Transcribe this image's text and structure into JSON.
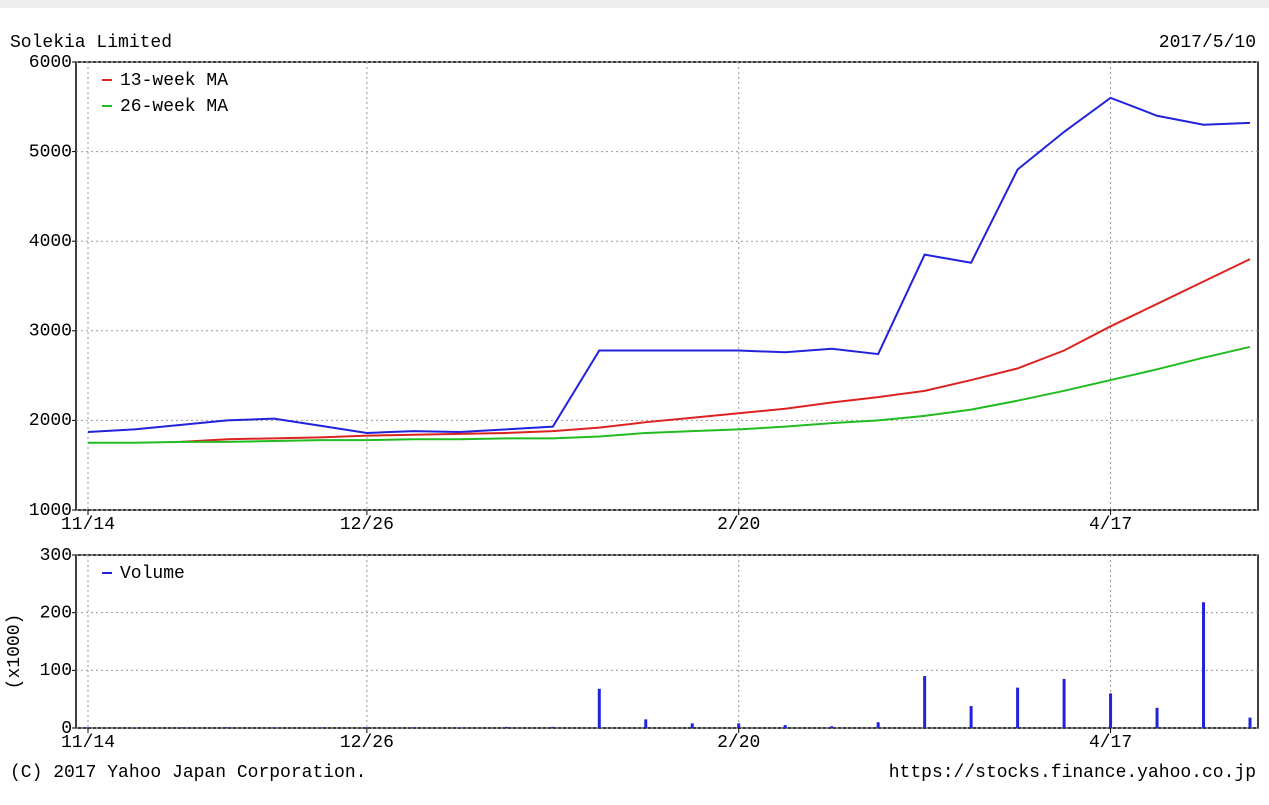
{
  "chart_data": [
    {
      "type": "line",
      "title": "Solekia Limited",
      "date": "2017/5/10",
      "categories": [
        "11/14",
        null,
        null,
        null,
        null,
        null,
        "12/26",
        null,
        null,
        null,
        null,
        null,
        null,
        null,
        "2/20",
        null,
        null,
        null,
        null,
        null,
        null,
        null,
        "4/17",
        null,
        null,
        null
      ],
      "series": [
        {
          "color": "#2222dd",
          "values": [
            1870,
            1900,
            1950,
            2000,
            2020,
            1940,
            1860,
            1880,
            1870,
            1900,
            1930,
            2780,
            2780,
            2780,
            2780,
            2760,
            2800,
            2740,
            3850,
            3760,
            4800,
            5220,
            5600,
            5400,
            5300,
            5320
          ]
        },
        {
          "name": "13-week MA",
          "color": "#dd2222",
          "values": [
            null,
            null,
            1760,
            1790,
            1800,
            1810,
            1830,
            1840,
            1850,
            1860,
            1880,
            1920,
            1980,
            2030,
            2080,
            2130,
            2200,
            2260,
            2330,
            2450,
            2580,
            2780,
            3050,
            3300,
            3550,
            3800
          ]
        },
        {
          "name": "26-week MA",
          "color": "#22bb22",
          "values": [
            1750,
            1750,
            1760,
            1760,
            1770,
            1780,
            1780,
            1790,
            1790,
            1800,
            1800,
            1820,
            1860,
            1880,
            1900,
            1930,
            1970,
            2000,
            2050,
            2120,
            2220,
            2330,
            2450,
            2570,
            2700,
            2820
          ]
        }
      ],
      "ylim": [
        1000,
        6000
      ],
      "yticks": [
        1000,
        2000,
        3000,
        4000,
        5000,
        6000
      ],
      "grid": true
    },
    {
      "type": "bar",
      "ylabel": "(x1000)",
      "categories": [
        "11/14",
        null,
        null,
        null,
        null,
        null,
        "12/26",
        null,
        null,
        null,
        null,
        null,
        null,
        null,
        "2/20",
        null,
        null,
        null,
        null,
        null,
        null,
        null,
        "4/17",
        null,
        null,
        null
      ],
      "series": [
        {
          "name": "Volume",
          "color": "#2222dd",
          "values": [
            1,
            1,
            1,
            1,
            1,
            1,
            1,
            1,
            1,
            2,
            2,
            68,
            15,
            8,
            8,
            5,
            3,
            10,
            90,
            38,
            70,
            85,
            60,
            35,
            218,
            18
          ]
        }
      ],
      "ylim": [
        0,
        300
      ],
      "yticks": [
        0,
        100,
        200,
        300
      ],
      "grid": true
    }
  ],
  "footer": {
    "copyright": "(C) 2017 Yahoo Japan Corporation.",
    "url": "https://stocks.finance.yahoo.co.jp"
  }
}
